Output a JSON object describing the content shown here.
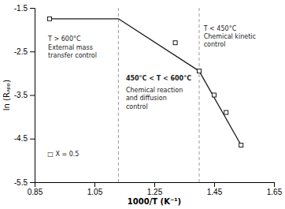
{
  "chart_data": {
    "type": "line",
    "xlabel": "1000/T (K⁻¹)",
    "ylabel": "ln (Rₐₚₚ)",
    "xlim": [
      0.85,
      1.65
    ],
    "ylim": [
      -5.5,
      -1.5
    ],
    "xticks": [
      0.85,
      1.05,
      1.25,
      1.45,
      1.65
    ],
    "yticks": [
      -5.5,
      -4.5,
      -3.5,
      -2.5,
      -1.5
    ],
    "series": [
      {
        "type": "line",
        "color": "#1a1a1a",
        "x": [
          0.9,
          1.13
        ],
        "values": [
          -1.75,
          -1.75
        ]
      },
      {
        "type": "line",
        "color": "#1a1a1a",
        "x": [
          1.13,
          1.4
        ],
        "values": [
          -1.75,
          -2.95
        ]
      },
      {
        "type": "line",
        "color": "#1a1a1a",
        "x": [
          1.4,
          1.54
        ],
        "values": [
          -2.95,
          -4.65
        ]
      },
      {
        "type": "scatter",
        "marker": "square",
        "color": "#1a1a1a",
        "x": [
          0.9,
          1.32,
          1.4,
          1.45,
          1.49,
          1.54
        ],
        "values": [
          -1.75,
          -2.3,
          -2.95,
          -3.5,
          -3.9,
          -4.65
        ]
      }
    ],
    "vlines": {
      "x": [
        1.13,
        1.4
      ],
      "color": "#999999",
      "line_style": "dashed"
    },
    "annotations": [
      {
        "text": "T > 600°C\nExternal mass\ntransfer control",
        "x": 0.895,
        "y": -2.15
      },
      {
        "text": "450°C < T < 600°C",
        "x": 1.155,
        "y": -3.05,
        "bold": true
      },
      {
        "text": "Chemical reaction\nand diffusion\ncontrol",
        "x": 1.155,
        "y": -3.32
      },
      {
        "text": "T < 450°C\nChemical kinetic\ncontrol",
        "x": 1.415,
        "y": -1.9
      },
      {
        "text": "□ X = 0.5",
        "x": 0.893,
        "y": -4.85,
        "anchor": "middle"
      }
    ]
  }
}
